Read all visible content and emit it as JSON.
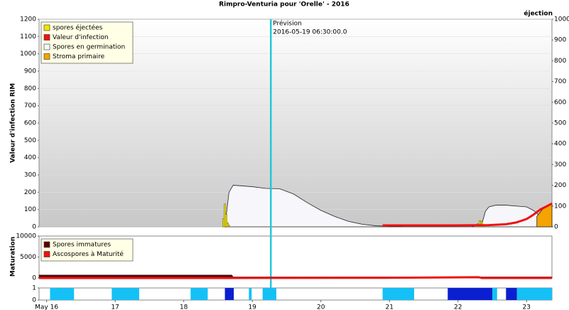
{
  "chart_data": [
    {
      "type": "mixed",
      "title": "Rimpro-Venturia pour 'Orelle' - 2016",
      "ylabel": "Valeur d'infection RIM",
      "y2label": "éjection",
      "ylim": [
        0,
        1200
      ],
      "yticks": [
        0,
        100,
        200,
        300,
        400,
        500,
        600,
        700,
        800,
        900,
        1000,
        1100,
        1200
      ],
      "y2lim": [
        0,
        1000
      ],
      "y2ticks": [
        0,
        100,
        200,
        300,
        400,
        500,
        600,
        700,
        800,
        900,
        1000
      ],
      "grid": true,
      "annotation": {
        "x": 19.27,
        "lines": [
          "Prévision",
          "2016-05-19 06:30:00.0"
        ]
      },
      "series": [
        {
          "name": "spores éjectées",
          "type": "bar",
          "axis": "y2",
          "color": "#f5e400",
          "x": [
            18.58,
            18.6,
            18.62,
            18.64,
            18.66,
            22.29,
            22.32,
            22.35,
            22.38
          ],
          "values": [
            40,
            110,
            60,
            20,
            8,
            15,
            30,
            25,
            10
          ]
        },
        {
          "name": "Valeur d'infection",
          "type": "line",
          "color": "#ee1111",
          "x": [
            20.9,
            21.6,
            21.85,
            22.45,
            22.7,
            22.85,
            23.0,
            23.1,
            23.2,
            23.3,
            23.37
          ],
          "values": [
            8,
            8,
            8,
            10,
            15,
            25,
            45,
            70,
            100,
            120,
            135
          ]
        },
        {
          "name": "Spores en germination",
          "type": "area",
          "color": "#f6f6fb",
          "x": [
            18.6,
            18.66,
            18.72,
            18.8,
            19.0,
            19.2,
            19.4,
            19.6,
            19.8,
            20.0,
            20.2,
            20.4,
            20.6,
            20.8,
            21.0,
            21.2,
            22.2,
            22.35,
            22.4,
            22.45,
            22.55,
            22.7,
            22.9,
            23.0,
            23.1,
            23.2,
            23.3,
            23.37
          ],
          "values": [
            0,
            200,
            240,
            238,
            232,
            222,
            220,
            190,
            140,
            95,
            60,
            32,
            15,
            6,
            3,
            0,
            0,
            20,
            90,
            115,
            125,
            125,
            118,
            115,
            95,
            60,
            30,
            20
          ]
        },
        {
          "name": "Stroma primaire",
          "type": "area",
          "color": "#f5a300",
          "x": [
            23.15,
            23.25,
            23.32,
            23.37
          ],
          "values": [
            60,
            110,
            125,
            135
          ]
        }
      ]
    },
    {
      "type": "mixed",
      "ylabel": "Maturation",
      "ylim": [
        0,
        10000
      ],
      "yticks": [
        0,
        5000,
        10000
      ],
      "series": [
        {
          "name": "Spores immatures",
          "type": "area",
          "color": "#5a0000",
          "x": [
            15.89,
            18.7,
            18.72,
            23.37
          ],
          "values": [
            700,
            700,
            250,
            250
          ]
        },
        {
          "name": "Ascospores à Maturité",
          "type": "line",
          "color": "#ee1111",
          "x": [
            15.89,
            18.7,
            20.9,
            22.3,
            22.35,
            23.37
          ],
          "values": [
            0,
            0,
            50,
            200,
            0,
            0
          ]
        }
      ]
    },
    {
      "type": "periods",
      "ylim": [
        0,
        1
      ],
      "yticks": [
        0,
        1
      ],
      "xlim": [
        15.89,
        23.37
      ],
      "xticks": [
        {
          "value": 16,
          "label": "May 16"
        },
        17,
        18,
        19,
        20,
        21,
        22,
        23
      ],
      "periods": [
        {
          "start": 16.05,
          "end": 16.4,
          "color": "#15c0f5"
        },
        {
          "start": 16.95,
          "end": 17.35,
          "color": "#15c0f5"
        },
        {
          "start": 18.1,
          "end": 18.35,
          "color": "#15c0f5"
        },
        {
          "start": 18.6,
          "end": 18.73,
          "color": "#0a20d0"
        },
        {
          "start": 18.95,
          "end": 18.99,
          "color": "#15c0f5"
        },
        {
          "start": 19.15,
          "end": 19.35,
          "color": "#15c0f5"
        },
        {
          "start": 20.9,
          "end": 21.36,
          "color": "#15c0f5"
        },
        {
          "start": 21.85,
          "end": 22.5,
          "color": "#0a20d0"
        },
        {
          "start": 22.5,
          "end": 22.57,
          "color": "#15c0f5"
        },
        {
          "start": 22.7,
          "end": 22.86,
          "color": "#0a20d0"
        },
        {
          "start": 22.86,
          "end": 23.37,
          "color": "#15c0f5"
        }
      ]
    }
  ]
}
